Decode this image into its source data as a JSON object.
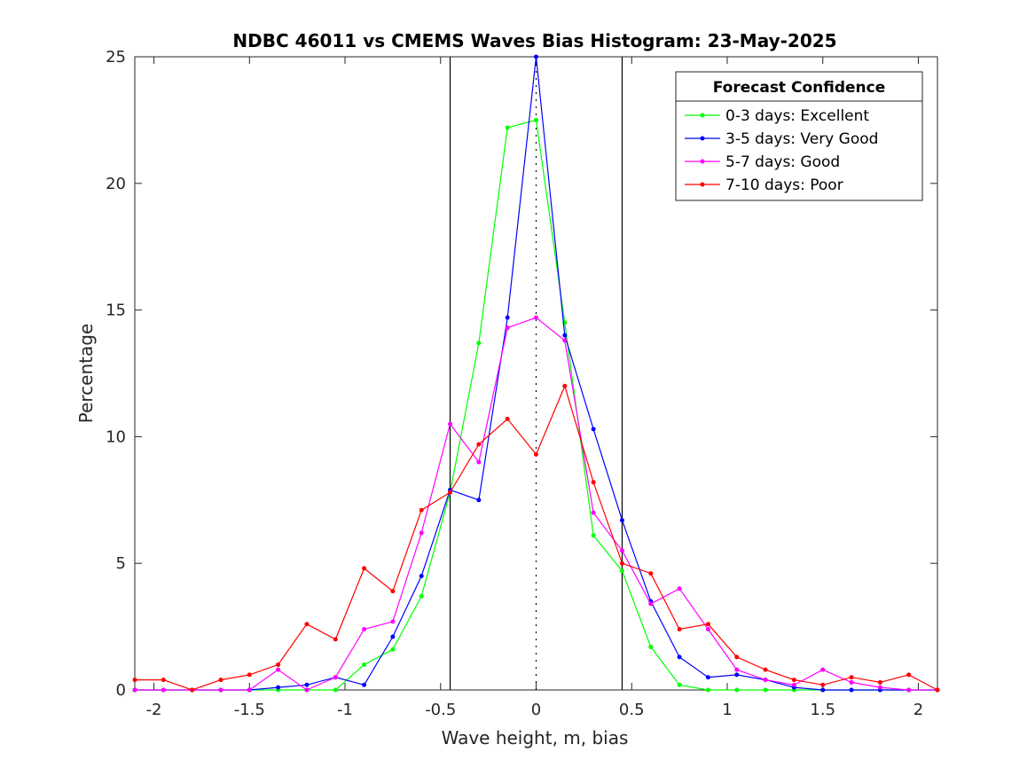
{
  "chart_data": {
    "type": "line",
    "title": "NDBC 46011 vs CMEMS Waves Bias Histogram: 23-May-2025",
    "xlabel": "Wave height, m, bias",
    "ylabel": "Percentage",
    "xlim": [
      -2.1,
      2.1
    ],
    "ylim": [
      0,
      25
    ],
    "xticks": [
      -2,
      -1.5,
      -1,
      -0.5,
      0,
      0.5,
      1,
      1.5,
      2
    ],
    "xtick_labels": [
      "-2",
      "-1.5",
      "-1",
      "-0.5",
      "0",
      "0.5",
      "1",
      "1.5",
      "2"
    ],
    "yticks": [
      0,
      5,
      10,
      15,
      20,
      25
    ],
    "ytick_labels": [
      "0",
      "5",
      "10",
      "15",
      "20",
      "25"
    ],
    "vertical_lines": [
      -0.45,
      0.45
    ],
    "dotted_line": 0,
    "grid": false,
    "legend": {
      "title": "Forecast Confidence",
      "position": "top-right"
    },
    "x": [
      -2.1,
      -1.95,
      -1.8,
      -1.65,
      -1.5,
      -1.35,
      -1.2,
      -1.05,
      -0.9,
      -0.75,
      -0.6,
      -0.45,
      -0.3,
      -0.15,
      0,
      0.15,
      0.3,
      0.45,
      0.6,
      0.75,
      0.9,
      1.05,
      1.2,
      1.35,
      1.5,
      1.65,
      1.8,
      1.95,
      2.1
    ],
    "series": [
      {
        "name": "0-3 days: Excellent",
        "color": "#00ff00",
        "values": [
          0,
          0,
          0,
          0,
          0,
          0,
          0,
          0,
          1.0,
          1.6,
          3.7,
          7.8,
          13.7,
          22.2,
          22.5,
          14.5,
          6.1,
          4.7,
          1.7,
          0.2,
          0,
          0,
          0,
          0,
          0,
          0,
          0,
          0,
          0
        ]
      },
      {
        "name": "3-5 days: Very Good",
        "color": "#0000ff",
        "values": [
          0,
          0,
          0,
          0,
          0,
          0.1,
          0.2,
          0.5,
          0.2,
          2.1,
          4.5,
          7.9,
          7.5,
          14.7,
          25.0,
          14.0,
          10.3,
          6.7,
          3.5,
          1.3,
          0.5,
          0.6,
          0.4,
          0.1,
          0,
          0,
          0,
          0,
          0
        ]
      },
      {
        "name": "5-7 days: Good",
        "color": "#ff00ff",
        "values": [
          0,
          0,
          0,
          0,
          0,
          0.8,
          0,
          0.5,
          2.4,
          2.7,
          6.2,
          10.5,
          9.0,
          14.3,
          14.7,
          13.8,
          7.0,
          5.5,
          3.4,
          4.0,
          2.4,
          0.8,
          0.4,
          0.2,
          0.8,
          0.3,
          0.1,
          0,
          0
        ]
      },
      {
        "name": "7-10 days: Poor",
        "color": "#ff0000",
        "values": [
          0.4,
          0.4,
          0,
          0.4,
          0.6,
          1.0,
          2.6,
          2.0,
          4.8,
          3.9,
          7.1,
          7.8,
          9.7,
          10.7,
          9.3,
          12.0,
          8.2,
          5.0,
          4.6,
          2.4,
          2.6,
          1.3,
          0.8,
          0.4,
          0.2,
          0.5,
          0.3,
          0.6,
          0
        ]
      }
    ]
  }
}
